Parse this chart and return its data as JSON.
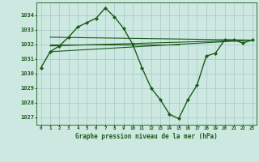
{
  "title": "Graphe pression niveau de la mer (hPa)",
  "bg_color": "#cce8e0",
  "grid_color": "#aacccc",
  "line_color": "#1a5c1a",
  "series_main": {
    "x": [
      0,
      1,
      2,
      3,
      4,
      5,
      6,
      7,
      8,
      9,
      10,
      11,
      12,
      13,
      14,
      15,
      16,
      17,
      18,
      19,
      20,
      21,
      22,
      23
    ],
    "y": [
      1030.4,
      1031.5,
      1031.9,
      1032.5,
      1033.2,
      1033.5,
      1033.8,
      1034.5,
      1033.9,
      1033.1,
      1032.0,
      1030.4,
      1029.0,
      1028.2,
      1027.2,
      1026.9,
      1028.2,
      1029.2,
      1031.2,
      1031.4,
      1032.3,
      1032.3,
      1032.1,
      1032.3
    ],
    "marker": "D",
    "markersize": 2.0,
    "linewidth": 1.0
  },
  "flat_lines": [
    {
      "x": [
        1,
        23
      ],
      "y": [
        1031.5,
        1032.3
      ],
      "linewidth": 0.8
    },
    {
      "x": [
        1,
        23
      ],
      "y": [
        1031.9,
        1032.3
      ],
      "linewidth": 0.8
    },
    {
      "x": [
        1,
        15
      ],
      "y": [
        1032.0,
        1032.0
      ],
      "linewidth": 0.8
    },
    {
      "x": [
        1,
        23
      ],
      "y": [
        1032.5,
        1032.3
      ],
      "linewidth": 0.8
    }
  ],
  "xlim": [
    -0.5,
    23.5
  ],
  "ylim": [
    1026.5,
    1034.9
  ],
  "yticks": [
    1027,
    1028,
    1029,
    1030,
    1031,
    1032,
    1033,
    1034
  ],
  "xticks": [
    0,
    1,
    2,
    3,
    4,
    5,
    6,
    7,
    8,
    9,
    10,
    11,
    12,
    13,
    14,
    15,
    16,
    17,
    18,
    19,
    20,
    21,
    22,
    23
  ],
  "xtick_labels": [
    "0",
    "1",
    "2",
    "3",
    "4",
    "5",
    "6",
    "7",
    "8",
    "9",
    "10",
    "11",
    "12",
    "13",
    "14",
    "15",
    "16",
    "17",
    "18",
    "19",
    "20",
    "21",
    "22",
    "23"
  ]
}
